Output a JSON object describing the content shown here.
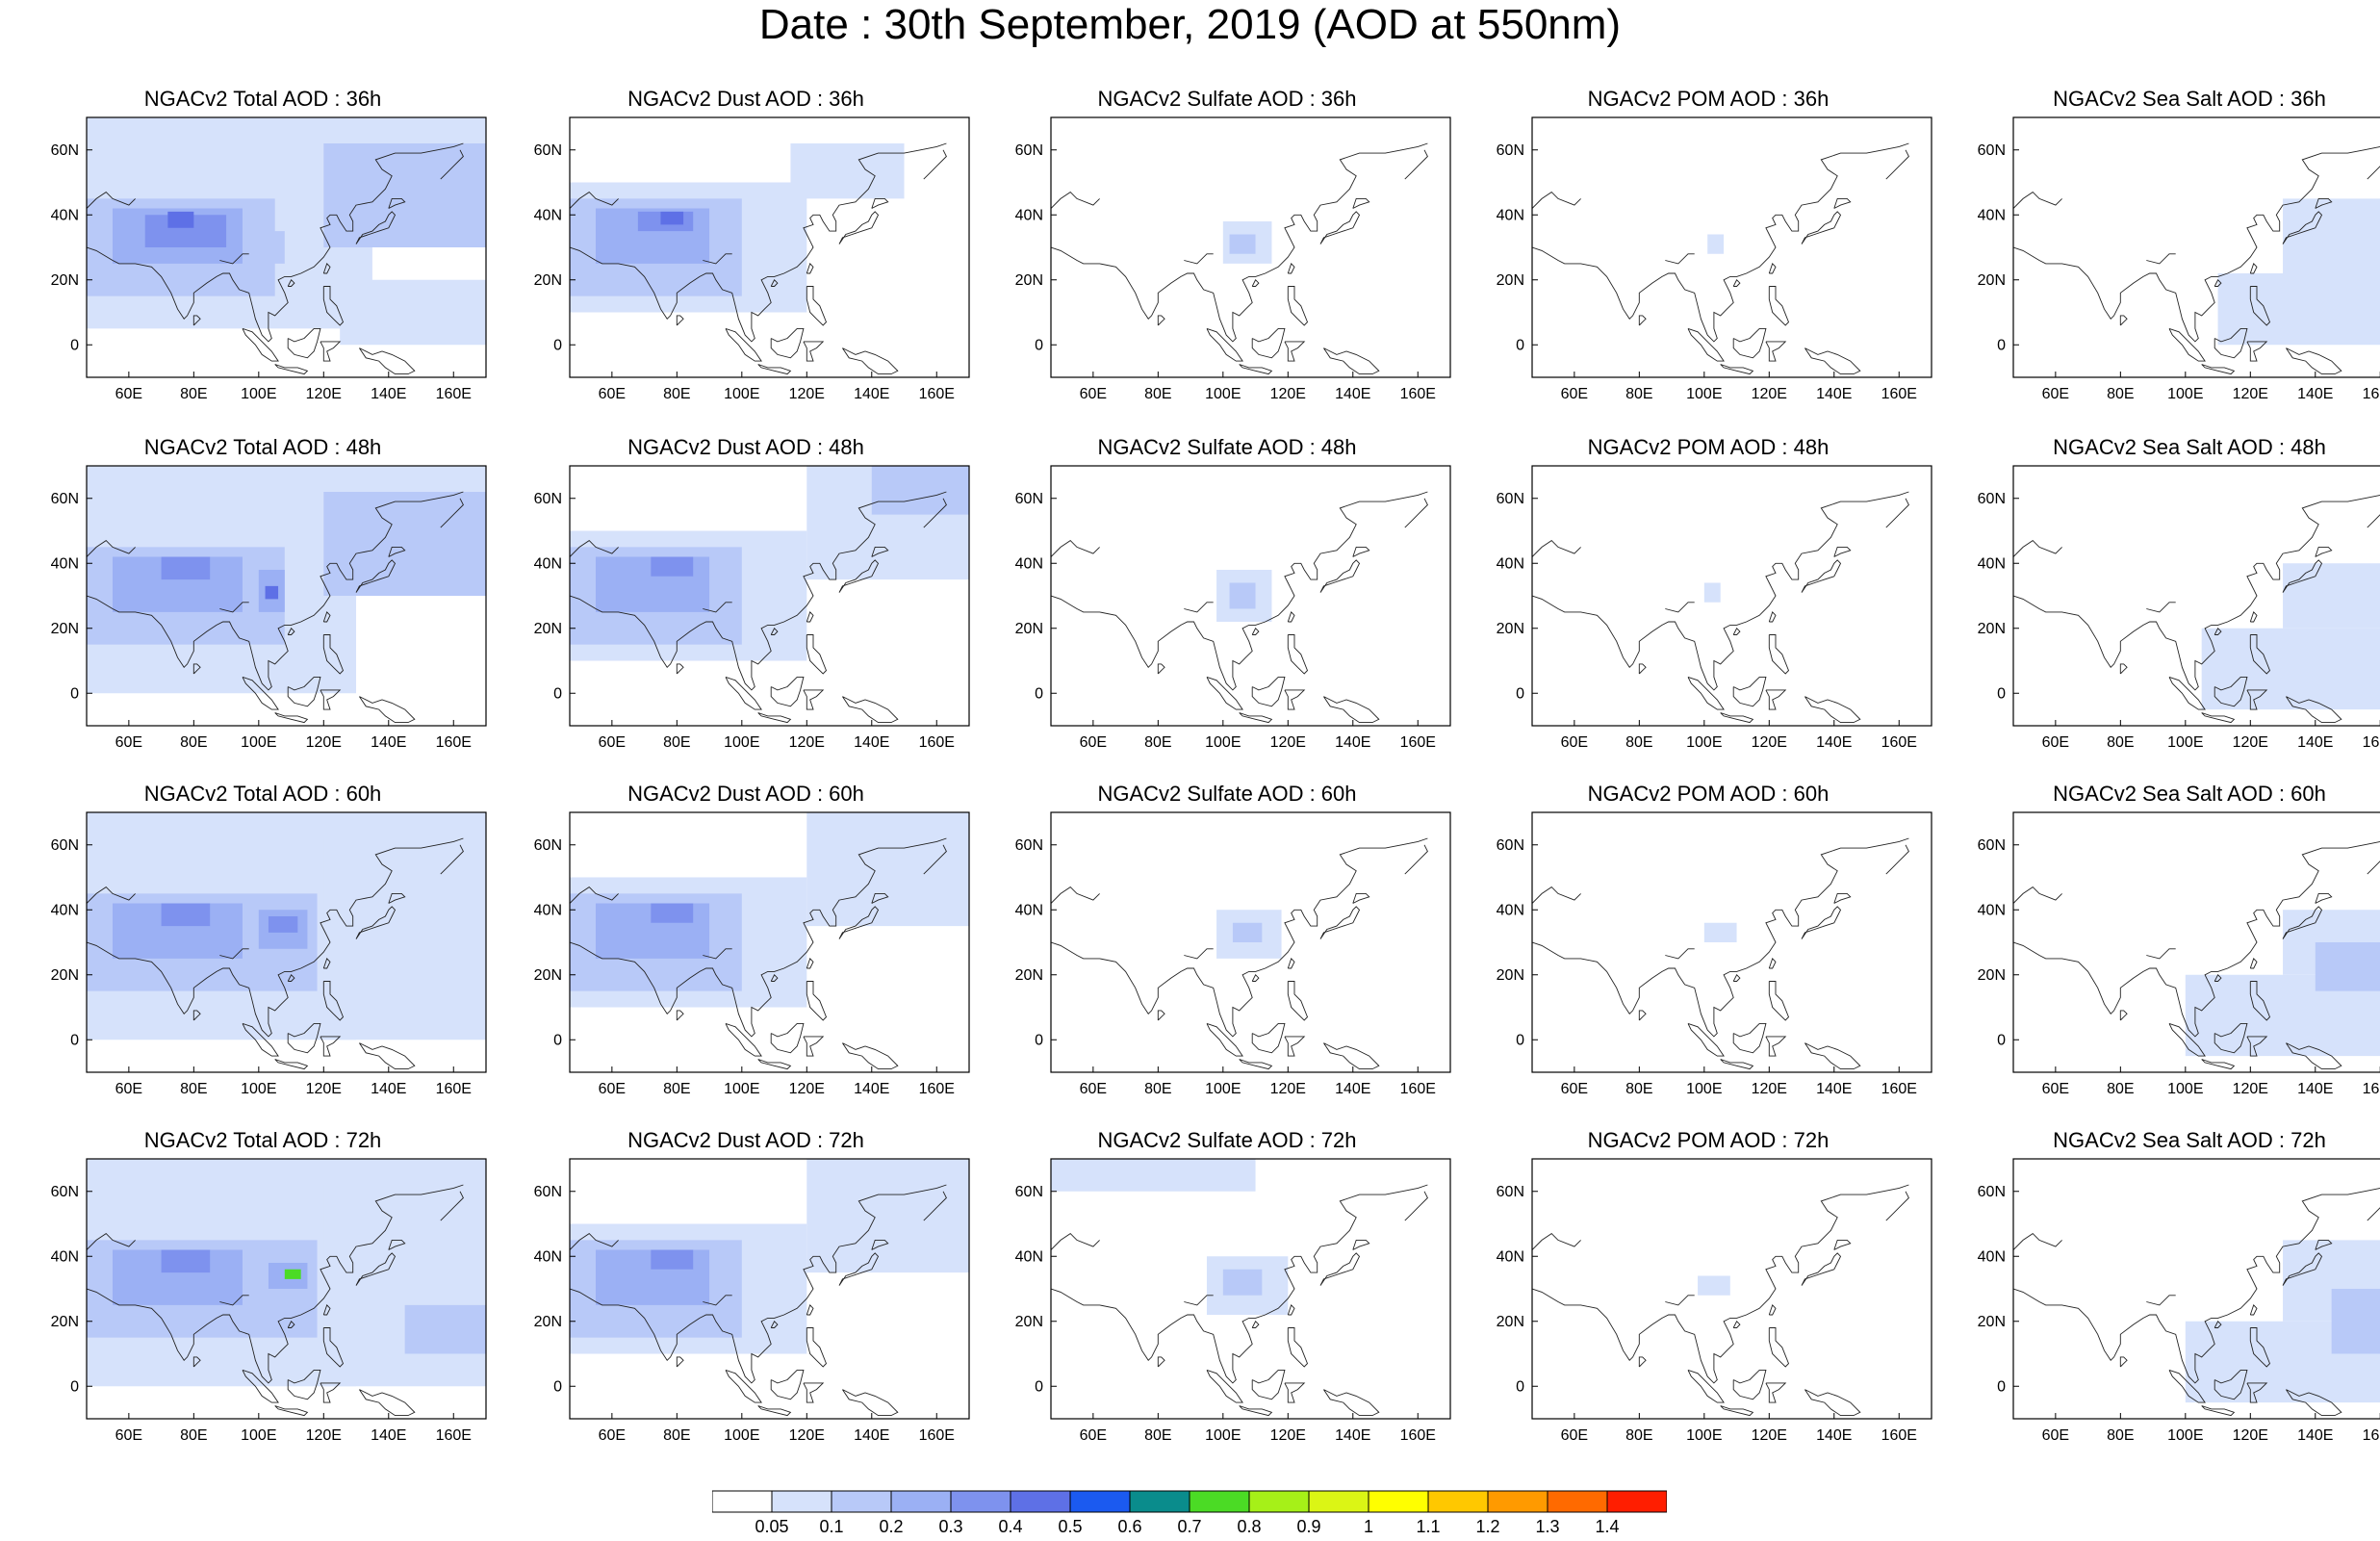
{
  "title": "Date : 30th September, 2019 (AOD at 550nm)",
  "grid": {
    "rows": [
      "36h",
      "48h",
      "60h",
      "72h"
    ],
    "columns": [
      "Total",
      "Dust",
      "Sulfate",
      "POM",
      "Sea Salt"
    ]
  },
  "map_extent": {
    "lon_range": [
      47,
      170
    ],
    "lat_range": [
      -10,
      70
    ]
  },
  "axes": {
    "x_ticks": [
      60,
      80,
      100,
      120,
      140,
      160
    ],
    "x_tick_labels": [
      "60E",
      "80E",
      "100E",
      "120E",
      "140E",
      "160E"
    ],
    "y_ticks": [
      0,
      20,
      40,
      60
    ],
    "y_tick_labels": [
      "0",
      "20N",
      "40N",
      "60N"
    ]
  },
  "panels": [
    {
      "id": "total-36",
      "title": "NGACv2 Total AOD : 36h",
      "field": "total",
      "hour": 36
    },
    {
      "id": "dust-36",
      "title": "NGACv2 Dust AOD : 36h",
      "field": "dust",
      "hour": 36
    },
    {
      "id": "sulfate-36",
      "title": "NGACv2 Sulfate AOD : 36h",
      "field": "sulfate",
      "hour": 36
    },
    {
      "id": "pom-36",
      "title": "NGACv2 POM AOD : 36h",
      "field": "pom",
      "hour": 36
    },
    {
      "id": "seasalt-36",
      "title": "NGACv2 Sea Salt AOD : 36h",
      "field": "seasalt",
      "hour": 36
    },
    {
      "id": "total-48",
      "title": "NGACv2 Total AOD : 48h",
      "field": "total",
      "hour": 48
    },
    {
      "id": "dust-48",
      "title": "NGACv2 Dust AOD : 48h",
      "field": "dust",
      "hour": 48
    },
    {
      "id": "sulfate-48",
      "title": "NGACv2 Sulfate AOD : 48h",
      "field": "sulfate",
      "hour": 48
    },
    {
      "id": "pom-48",
      "title": "NGACv2 POM AOD : 48h",
      "field": "pom",
      "hour": 48
    },
    {
      "id": "seasalt-48",
      "title": "NGACv2 Sea Salt AOD : 48h",
      "field": "seasalt",
      "hour": 48
    },
    {
      "id": "total-60",
      "title": "NGACv2 Total AOD : 60h",
      "field": "total",
      "hour": 60
    },
    {
      "id": "dust-60",
      "title": "NGACv2 Dust AOD : 60h",
      "field": "dust",
      "hour": 60
    },
    {
      "id": "sulfate-60",
      "title": "NGACv2 Sulfate AOD : 60h",
      "field": "sulfate",
      "hour": 60
    },
    {
      "id": "pom-60",
      "title": "NGACv2 POM AOD : 60h",
      "field": "pom",
      "hour": 60
    },
    {
      "id": "seasalt-60",
      "title": "NGACv2 Sea Salt AOD : 60h",
      "field": "seasalt",
      "hour": 60
    },
    {
      "id": "total-72",
      "title": "NGACv2 Total AOD : 72h",
      "field": "total",
      "hour": 72
    },
    {
      "id": "dust-72",
      "title": "NGACv2 Dust AOD : 72h",
      "field": "dust",
      "hour": 72
    },
    {
      "id": "sulfate-72",
      "title": "NGACv2 Sulfate AOD : 72h",
      "field": "sulfate",
      "hour": 72
    },
    {
      "id": "pom-72",
      "title": "NGACv2 POM AOD : 72h",
      "field": "pom",
      "hour": 72
    },
    {
      "id": "seasalt-72",
      "title": "NGACv2 Sea Salt  AOD : 72h",
      "field": "seasalt",
      "hour": 72
    }
  ],
  "colorbar": {
    "labels": [
      "0.05",
      "0.1",
      "0.2",
      "0.3",
      "0.4",
      "0.5",
      "0.6",
      "0.7",
      "0.8",
      "0.9",
      "1",
      "1.1",
      "1.2",
      "1.3",
      "1.4"
    ],
    "colors": [
      "#ffffff",
      "#d6e2fb",
      "#b8c9f8",
      "#9bb0f4",
      "#7e92ee",
      "#5e70e6",
      "#1b5af0",
      "#0a8c8c",
      "#4bdb25",
      "#a6f018",
      "#dbf515",
      "#ffff00",
      "#ffc800",
      "#ff9a00",
      "#ff6a00",
      "#ff1e00"
    ]
  },
  "aod_palette": {
    "0.05": "#d6e2fb",
    "0.1": "#b8c9f8",
    "0.2": "#9bb0f4",
    "0.3": "#7e92ee",
    "0.4": "#5e70e6",
    "0.7": "#4bdb25"
  },
  "regions": {
    "total-36": [
      {
        "lon": [
          47,
          200
        ],
        "lat": [
          50,
          70
        ],
        "aod": 0.05
      },
      {
        "lon": [
          47,
          135
        ],
        "lat": [
          5,
          50
        ],
        "aod": 0.05
      },
      {
        "lon": [
          47,
          105
        ],
        "lat": [
          15,
          45
        ],
        "aod": 0.1
      },
      {
        "lon": [
          55,
          95
        ],
        "lat": [
          25,
          42
        ],
        "aod": 0.2
      },
      {
        "lon": [
          65,
          90
        ],
        "lat": [
          30,
          40
        ],
        "aod": 0.3
      },
      {
        "lon": [
          72,
          80
        ],
        "lat": [
          36,
          41
        ],
        "aod": 0.4
      },
      {
        "lon": [
          100,
          108
        ],
        "lat": [
          25,
          35
        ],
        "aod": 0.1
      },
      {
        "lon": [
          120,
          175
        ],
        "lat": [
          30,
          62
        ],
        "aod": 0.1
      },
      {
        "lon": [
          125,
          175
        ],
        "lat": [
          0,
          20
        ],
        "aod": 0.05
      }
    ],
    "dust-36": [
      {
        "lon": [
          47,
          120
        ],
        "lat": [
          10,
          50
        ],
        "aod": 0.05
      },
      {
        "lon": [
          47,
          100
        ],
        "lat": [
          15,
          45
        ],
        "aod": 0.1
      },
      {
        "lon": [
          55,
          90
        ],
        "lat": [
          25,
          42
        ],
        "aod": 0.2
      },
      {
        "lon": [
          68,
          85
        ],
        "lat": [
          35,
          41
        ],
        "aod": 0.3
      },
      {
        "lon": [
          75,
          82
        ],
        "lat": [
          37,
          41
        ],
        "aod": 0.4
      },
      {
        "lon": [
          115,
          150
        ],
        "lat": [
          45,
          62
        ],
        "aod": 0.05
      }
    ],
    "sulfate-36": [
      {
        "lon": [
          100,
          115
        ],
        "lat": [
          25,
          38
        ],
        "aod": 0.05
      },
      {
        "lon": [
          102,
          110
        ],
        "lat": [
          28,
          34
        ],
        "aod": 0.1
      }
    ],
    "pom-36": [
      {
        "lon": [
          101,
          106
        ],
        "lat": [
          28,
          34
        ],
        "aod": 0.05
      }
    ],
    "seasalt-36": [
      {
        "lon": [
          110,
          175
        ],
        "lat": [
          0,
          22
        ],
        "aod": 0.05
      },
      {
        "lon": [
          130,
          175
        ],
        "lat": [
          20,
          45
        ],
        "aod": 0.05
      }
    ],
    "total-48": [
      {
        "lon": [
          47,
          200
        ],
        "lat": [
          50,
          70
        ],
        "aod": 0.05
      },
      {
        "lon": [
          47,
          130
        ],
        "lat": [
          0,
          50
        ],
        "aod": 0.05
      },
      {
        "lon": [
          47,
          108
        ],
        "lat": [
          15,
          45
        ],
        "aod": 0.1
      },
      {
        "lon": [
          55,
          95
        ],
        "lat": [
          25,
          42
        ],
        "aod": 0.2
      },
      {
        "lon": [
          70,
          85
        ],
        "lat": [
          35,
          42
        ],
        "aod": 0.3
      },
      {
        "lon": [
          100,
          108
        ],
        "lat": [
          25,
          38
        ],
        "aod": 0.2
      },
      {
        "lon": [
          102,
          106
        ],
        "lat": [
          29,
          33
        ],
        "aod": 0.4
      },
      {
        "lon": [
          120,
          175
        ],
        "lat": [
          30,
          62
        ],
        "aod": 0.1
      }
    ],
    "dust-48": [
      {
        "lon": [
          47,
          120
        ],
        "lat": [
          10,
          50
        ],
        "aod": 0.05
      },
      {
        "lon": [
          47,
          100
        ],
        "lat": [
          15,
          45
        ],
        "aod": 0.1
      },
      {
        "lon": [
          55,
          90
        ],
        "lat": [
          25,
          42
        ],
        "aod": 0.2
      },
      {
        "lon": [
          72,
          85
        ],
        "lat": [
          36,
          42
        ],
        "aod": 0.3
      },
      {
        "lon": [
          120,
          175
        ],
        "lat": [
          35,
          70
        ],
        "aod": 0.05
      },
      {
        "lon": [
          140,
          170
        ],
        "lat": [
          55,
          70
        ],
        "aod": 0.1
      }
    ],
    "sulfate-48": [
      {
        "lon": [
          98,
          115
        ],
        "lat": [
          22,
          38
        ],
        "aod": 0.05
      },
      {
        "lon": [
          102,
          110
        ],
        "lat": [
          26,
          34
        ],
        "aod": 0.1
      }
    ],
    "pom-48": [
      {
        "lon": [
          100,
          105
        ],
        "lat": [
          28,
          34
        ],
        "aod": 0.05
      }
    ],
    "seasalt-48": [
      {
        "lon": [
          105,
          175
        ],
        "lat": [
          -5,
          20
        ],
        "aod": 0.05
      },
      {
        "lon": [
          130,
          175
        ],
        "lat": [
          20,
          40
        ],
        "aod": 0.05
      }
    ],
    "total-60": [
      {
        "lon": [
          47,
          200
        ],
        "lat": [
          50,
          70
        ],
        "aod": 0.05
      },
      {
        "lon": [
          47,
          130
        ],
        "lat": [
          0,
          50
        ],
        "aod": 0.05
      },
      {
        "lon": [
          47,
          118
        ],
        "lat": [
          15,
          45
        ],
        "aod": 0.1
      },
      {
        "lon": [
          55,
          95
        ],
        "lat": [
          25,
          42
        ],
        "aod": 0.2
      },
      {
        "lon": [
          70,
          85
        ],
        "lat": [
          35,
          42
        ],
        "aod": 0.3
      },
      {
        "lon": [
          100,
          115
        ],
        "lat": [
          28,
          40
        ],
        "aod": 0.2
      },
      {
        "lon": [
          103,
          112
        ],
        "lat": [
          33,
          38
        ],
        "aod": 0.3
      },
      {
        "lon": [
          120,
          175
        ],
        "lat": [
          0,
          62
        ],
        "aod": 0.05
      }
    ],
    "dust-60": [
      {
        "lon": [
          47,
          120
        ],
        "lat": [
          10,
          50
        ],
        "aod": 0.05
      },
      {
        "lon": [
          47,
          100
        ],
        "lat": [
          15,
          45
        ],
        "aod": 0.1
      },
      {
        "lon": [
          55,
          90
        ],
        "lat": [
          25,
          42
        ],
        "aod": 0.2
      },
      {
        "lon": [
          72,
          85
        ],
        "lat": [
          36,
          42
        ],
        "aod": 0.3
      },
      {
        "lon": [
          120,
          175
        ],
        "lat": [
          35,
          70
        ],
        "aod": 0.05
      }
    ],
    "sulfate-60": [
      {
        "lon": [
          98,
          118
        ],
        "lat": [
          25,
          40
        ],
        "aod": 0.05
      },
      {
        "lon": [
          103,
          112
        ],
        "lat": [
          30,
          36
        ],
        "aod": 0.1
      }
    ],
    "pom-60": [
      {
        "lon": [
          100,
          110
        ],
        "lat": [
          30,
          36
        ],
        "aod": 0.05
      }
    ],
    "seasalt-60": [
      {
        "lon": [
          100,
          175
        ],
        "lat": [
          -5,
          20
        ],
        "aod": 0.05
      },
      {
        "lon": [
          130,
          175
        ],
        "lat": [
          20,
          40
        ],
        "aod": 0.05
      },
      {
        "lon": [
          140,
          175
        ],
        "lat": [
          15,
          30
        ],
        "aod": 0.1
      }
    ],
    "total-72": [
      {
        "lon": [
          47,
          200
        ],
        "lat": [
          50,
          70
        ],
        "aod": 0.05
      },
      {
        "lon": [
          47,
          130
        ],
        "lat": [
          0,
          50
        ],
        "aod": 0.05
      },
      {
        "lon": [
          47,
          118
        ],
        "lat": [
          15,
          45
        ],
        "aod": 0.1
      },
      {
        "lon": [
          55,
          95
        ],
        "lat": [
          25,
          42
        ],
        "aod": 0.2
      },
      {
        "lon": [
          70,
          85
        ],
        "lat": [
          35,
          42
        ],
        "aod": 0.3
      },
      {
        "lon": [
          103,
          115
        ],
        "lat": [
          30,
          38
        ],
        "aod": 0.2
      },
      {
        "lon": [
          108,
          113
        ],
        "lat": [
          33,
          36
        ],
        "aod": 0.7
      },
      {
        "lon": [
          120,
          175
        ],
        "lat": [
          0,
          62
        ],
        "aod": 0.05
      },
      {
        "lon": [
          145,
          170
        ],
        "lat": [
          10,
          25
        ],
        "aod": 0.1
      }
    ],
    "dust-72": [
      {
        "lon": [
          47,
          120
        ],
        "lat": [
          10,
          50
        ],
        "aod": 0.05
      },
      {
        "lon": [
          47,
          100
        ],
        "lat": [
          15,
          45
        ],
        "aod": 0.1
      },
      {
        "lon": [
          55,
          90
        ],
        "lat": [
          25,
          42
        ],
        "aod": 0.2
      },
      {
        "lon": [
          72,
          85
        ],
        "lat": [
          36,
          42
        ],
        "aod": 0.3
      },
      {
        "lon": [
          120,
          175
        ],
        "lat": [
          35,
          70
        ],
        "aod": 0.05
      }
    ],
    "sulfate-72": [
      {
        "lon": [
          95,
          120
        ],
        "lat": [
          22,
          40
        ],
        "aod": 0.05
      },
      {
        "lon": [
          100,
          112
        ],
        "lat": [
          28,
          36
        ],
        "aod": 0.1
      },
      {
        "lon": [
          47,
          110
        ],
        "lat": [
          60,
          70
        ],
        "aod": 0.05
      }
    ],
    "pom-72": [
      {
        "lon": [
          98,
          108
        ],
        "lat": [
          28,
          34
        ],
        "aod": 0.05
      }
    ],
    "seasalt-72": [
      {
        "lon": [
          100,
          175
        ],
        "lat": [
          -5,
          20
        ],
        "aod": 0.05
      },
      {
        "lon": [
          130,
          175
        ],
        "lat": [
          20,
          45
        ],
        "aod": 0.05
      },
      {
        "lon": [
          145,
          175
        ],
        "lat": [
          10,
          30
        ],
        "aod": 0.1
      }
    ]
  }
}
